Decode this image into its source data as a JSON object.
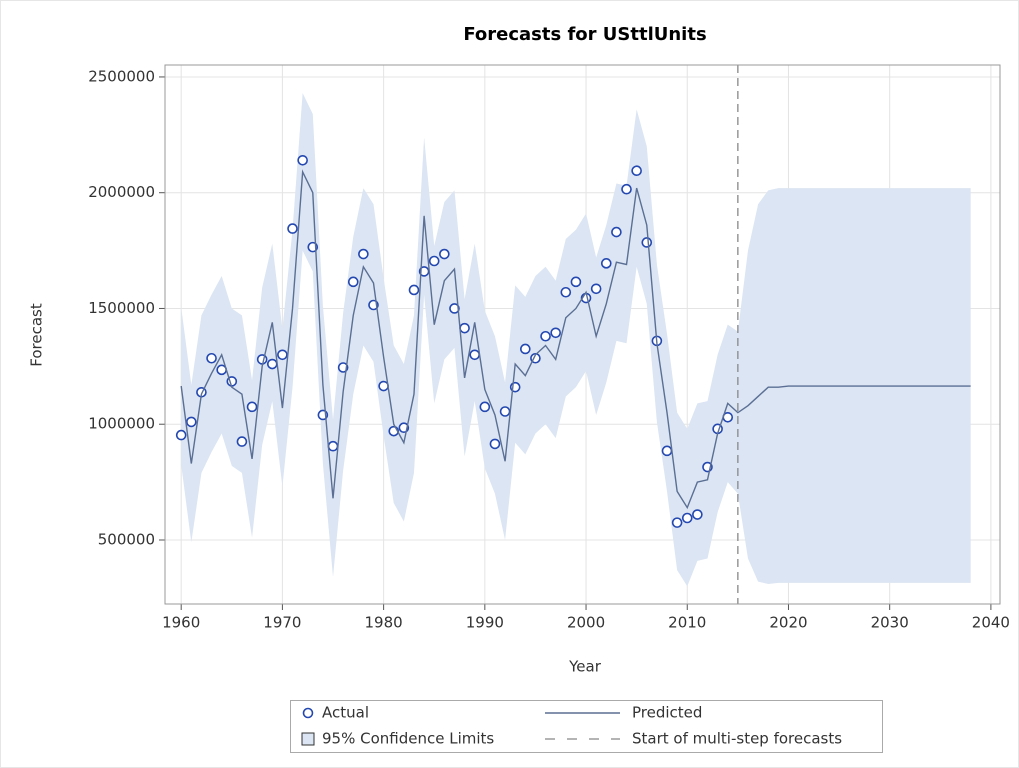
{
  "chart_data": {
    "type": "line",
    "title": "Forecasts for USttlUnits",
    "x_label": "Year",
    "y_label": "Forecast",
    "x": [
      1960,
      1961,
      1962,
      1963,
      1964,
      1965,
      1966,
      1967,
      1968,
      1969,
      1970,
      1971,
      1972,
      1973,
      1974,
      1975,
      1976,
      1977,
      1978,
      1979,
      1980,
      1981,
      1982,
      1983,
      1984,
      1985,
      1986,
      1987,
      1988,
      1989,
      1990,
      1991,
      1992,
      1993,
      1994,
      1995,
      1996,
      1997,
      1998,
      1999,
      2000,
      2001,
      2002,
      2003,
      2004,
      2005,
      2006,
      2007,
      2008,
      2009,
      2010,
      2011,
      2012,
      2013,
      2014,
      2015,
      2016,
      2017,
      2018,
      2019,
      2020,
      2021,
      2022,
      2023,
      2024,
      2025,
      2026,
      2027,
      2028,
      2029,
      2030,
      2031,
      2032,
      2033,
      2034,
      2035,
      2036,
      2037,
      2038
    ],
    "series": [
      {
        "name": "Actual",
        "color": "#2448b0",
        "marker": "circle",
        "values": [
          953000,
          1010000,
          1138000,
          1285000,
          1235000,
          1185000,
          925000,
          1075000,
          1280000,
          1260000,
          1300000,
          1845000,
          2140000,
          1765000,
          1040000,
          905000,
          1245000,
          1615000,
          1735000,
          1515000,
          1165000,
          970000,
          985000,
          1580000,
          1660000,
          1705000,
          1735000,
          1500000,
          1415000,
          1300000,
          1075000,
          915000,
          1055000,
          1160000,
          1325000,
          1285000,
          1380000,
          1395000,
          1570000,
          1615000,
          1545000,
          1585000,
          1695000,
          1830000,
          2015000,
          2095000,
          1785000,
          1360000,
          885000,
          575000,
          595000,
          610000,
          815000,
          980000,
          1030000,
          null,
          null,
          null,
          null,
          null,
          null,
          null,
          null,
          null,
          null,
          null,
          null,
          null,
          null,
          null,
          null,
          null,
          null,
          null,
          null,
          null,
          null,
          null,
          null
        ]
      },
      {
        "name": "Predicted",
        "color": "#5b6f94",
        "marker": "line",
        "values": [
          1165000,
          830000,
          1130000,
          1220000,
          1300000,
          1160000,
          1130000,
          850000,
          1250000,
          1440000,
          1070000,
          1500000,
          2090000,
          2000000,
          1170000,
          680000,
          1140000,
          1470000,
          1680000,
          1610000,
          1290000,
          1000000,
          920000,
          1130000,
          1900000,
          1430000,
          1620000,
          1670000,
          1200000,
          1440000,
          1150000,
          1040000,
          840000,
          1260000,
          1210000,
          1300000,
          1340000,
          1280000,
          1460000,
          1500000,
          1570000,
          1380000,
          1520000,
          1700000,
          1690000,
          2020000,
          1860000,
          1350000,
          1050000,
          710000,
          640000,
          750000,
          760000,
          960000,
          1090000,
          1050000,
          1080000,
          1120000,
          1160000,
          1160000,
          1165000,
          1165000,
          1165000,
          1165000,
          1165000,
          1165000,
          1165000,
          1165000,
          1165000,
          1165000,
          1165000,
          1165000,
          1165000,
          1165000,
          1165000,
          1165000,
          1165000,
          1165000,
          1165000
        ]
      }
    ],
    "band": {
      "name": "95% Confidence Limits",
      "color": "#dbe5f3",
      "upper": [
        1505000,
        1170000,
        1470000,
        1560000,
        1640000,
        1500000,
        1470000,
        1190000,
        1590000,
        1780000,
        1410000,
        1840000,
        2430000,
        2340000,
        1510000,
        1020000,
        1480000,
        1810000,
        2020000,
        1950000,
        1630000,
        1340000,
        1260000,
        1470000,
        2240000,
        1770000,
        1960000,
        2010000,
        1540000,
        1780000,
        1490000,
        1380000,
        1180000,
        1600000,
        1550000,
        1640000,
        1680000,
        1620000,
        1800000,
        1840000,
        1910000,
        1720000,
        1860000,
        2040000,
        2030000,
        2360000,
        2200000,
        1690000,
        1390000,
        1050000,
        980000,
        1090000,
        1100000,
        1300000,
        1430000,
        1400000,
        1750000,
        1950000,
        2010000,
        2020000,
        2020000,
        2020000,
        2020000,
        2020000,
        2020000,
        2020000,
        2020000,
        2020000,
        2020000,
        2020000,
        2020000,
        2020000,
        2020000,
        2020000,
        2020000,
        2020000,
        2020000,
        2020000,
        2020000
      ],
      "lower": [
        825000,
        490000,
        790000,
        880000,
        960000,
        820000,
        790000,
        510000,
        910000,
        1100000,
        730000,
        1160000,
        1750000,
        1660000,
        830000,
        340000,
        800000,
        1130000,
        1340000,
        1270000,
        950000,
        660000,
        580000,
        790000,
        1560000,
        1090000,
        1280000,
        1330000,
        860000,
        1100000,
        810000,
        700000,
        500000,
        920000,
        870000,
        960000,
        1000000,
        940000,
        1120000,
        1160000,
        1230000,
        1040000,
        1180000,
        1360000,
        1350000,
        1680000,
        1520000,
        1010000,
        710000,
        370000,
        300000,
        410000,
        420000,
        620000,
        750000,
        700000,
        420000,
        320000,
        310000,
        315000,
        315000,
        315000,
        315000,
        315000,
        315000,
        315000,
        315000,
        315000,
        315000,
        315000,
        315000,
        315000,
        315000,
        315000,
        315000,
        315000,
        315000,
        315000,
        315000
      ]
    },
    "forecast_start": {
      "name": "Start of multi-step forecasts",
      "x": 2015,
      "color": "#888888"
    },
    "xlim": [
      1958.4,
      2040.9
    ],
    "ylim": [
      223500,
      2551600
    ],
    "xticks": [
      1960,
      1970,
      1980,
      1990,
      2000,
      2010,
      2020,
      2030,
      2040
    ],
    "yticks": [
      500000,
      1000000,
      1500000,
      2000000,
      2500000
    ],
    "grid": true
  }
}
